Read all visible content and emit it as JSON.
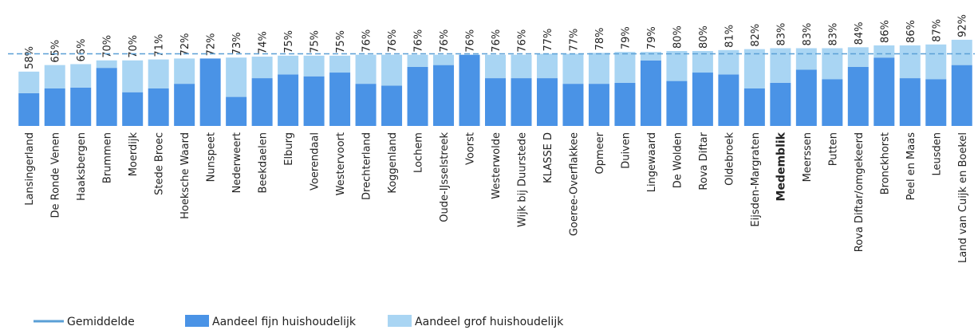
{
  "chart_data": {
    "type": "stacked_bar",
    "categories": [
      "Lansingerland",
      "De Ronde Venen",
      "Haaksbergen",
      "Brummen",
      "Moerdijk",
      "Stede Broec",
      "Hoeksche Waard",
      "Nunspeet",
      "Nederweert",
      "Beekdaelen",
      "Elburg",
      "Voerendaal",
      "Westervoort",
      "Drechterland",
      "Koggenland",
      "Lochem",
      "Oude-IJsselstreek",
      "Voorst",
      "Westerwolde",
      "Wijk bij Duurstede",
      "KLASSE D",
      "Goeree-Overflakkee",
      "Opmeer",
      "Duiven",
      "Lingewaard",
      "De Wolden",
      "Rova Diftar",
      "Oldebroek",
      "Eijsden-Margraten",
      "Medemblik",
      "Meerssen",
      "Putten",
      "Rova Diftar/omgekeerd",
      "Bronckhorst",
      "Peel en Maas",
      "Leusden",
      "Land van Cuijk en Boekel"
    ],
    "series": [
      {
        "name": "Aandeel fijn huishoudelijk",
        "color": "#4a93e6",
        "values": [
          35,
          40,
          41,
          62,
          36,
          40,
          45,
          72,
          31,
          51,
          55,
          53,
          57,
          45,
          43,
          63,
          65,
          76,
          51,
          51,
          51,
          45,
          45,
          46,
          70,
          48,
          57,
          55,
          40,
          46,
          60,
          50,
          63,
          73,
          51,
          50,
          65
        ]
      },
      {
        "name": "Aandeel grof huishoudelijk",
        "color": "#a9d5f3",
        "values": [
          23,
          25,
          25,
          8,
          34,
          31,
          27,
          0,
          42,
          23,
          20,
          22,
          18,
          31,
          33,
          13,
          11,
          0,
          25,
          25,
          26,
          32,
          33,
          33,
          9,
          32,
          23,
          26,
          42,
          37,
          23,
          33,
          21,
          13,
          35,
          37,
          27
        ]
      }
    ],
    "totals": [
      58,
      65,
      66,
      70,
      70,
      71,
      72,
      72,
      73,
      74,
      75,
      75,
      75,
      76,
      76,
      76,
      76,
      76,
      76,
      76,
      77,
      77,
      78,
      79,
      79,
      80,
      80,
      81,
      82,
      83,
      83,
      83,
      84,
      86,
      86,
      87,
      92
    ],
    "total_labels": [
      "58%",
      "65%",
      "66%",
      "70%",
      "70%",
      "71%",
      "72%",
      "72%",
      "73%",
      "74%",
      "75%",
      "75%",
      "75%",
      "76%",
      "76%",
      "76%",
      "76%",
      "76%",
      "76%",
      "76%",
      "77%",
      "77%",
      "78%",
      "79%",
      "79%",
      "80%",
      "80%",
      "81%",
      "82%",
      "83%",
      "83%",
      "83%",
      "84%",
      "86%",
      "86%",
      "87%",
      "92%"
    ],
    "average": {
      "name": "Gemiddelde",
      "color": "#5a9fd6",
      "value": 77
    },
    "highlight_index": 29,
    "ylim": [
      0,
      100
    ]
  }
}
